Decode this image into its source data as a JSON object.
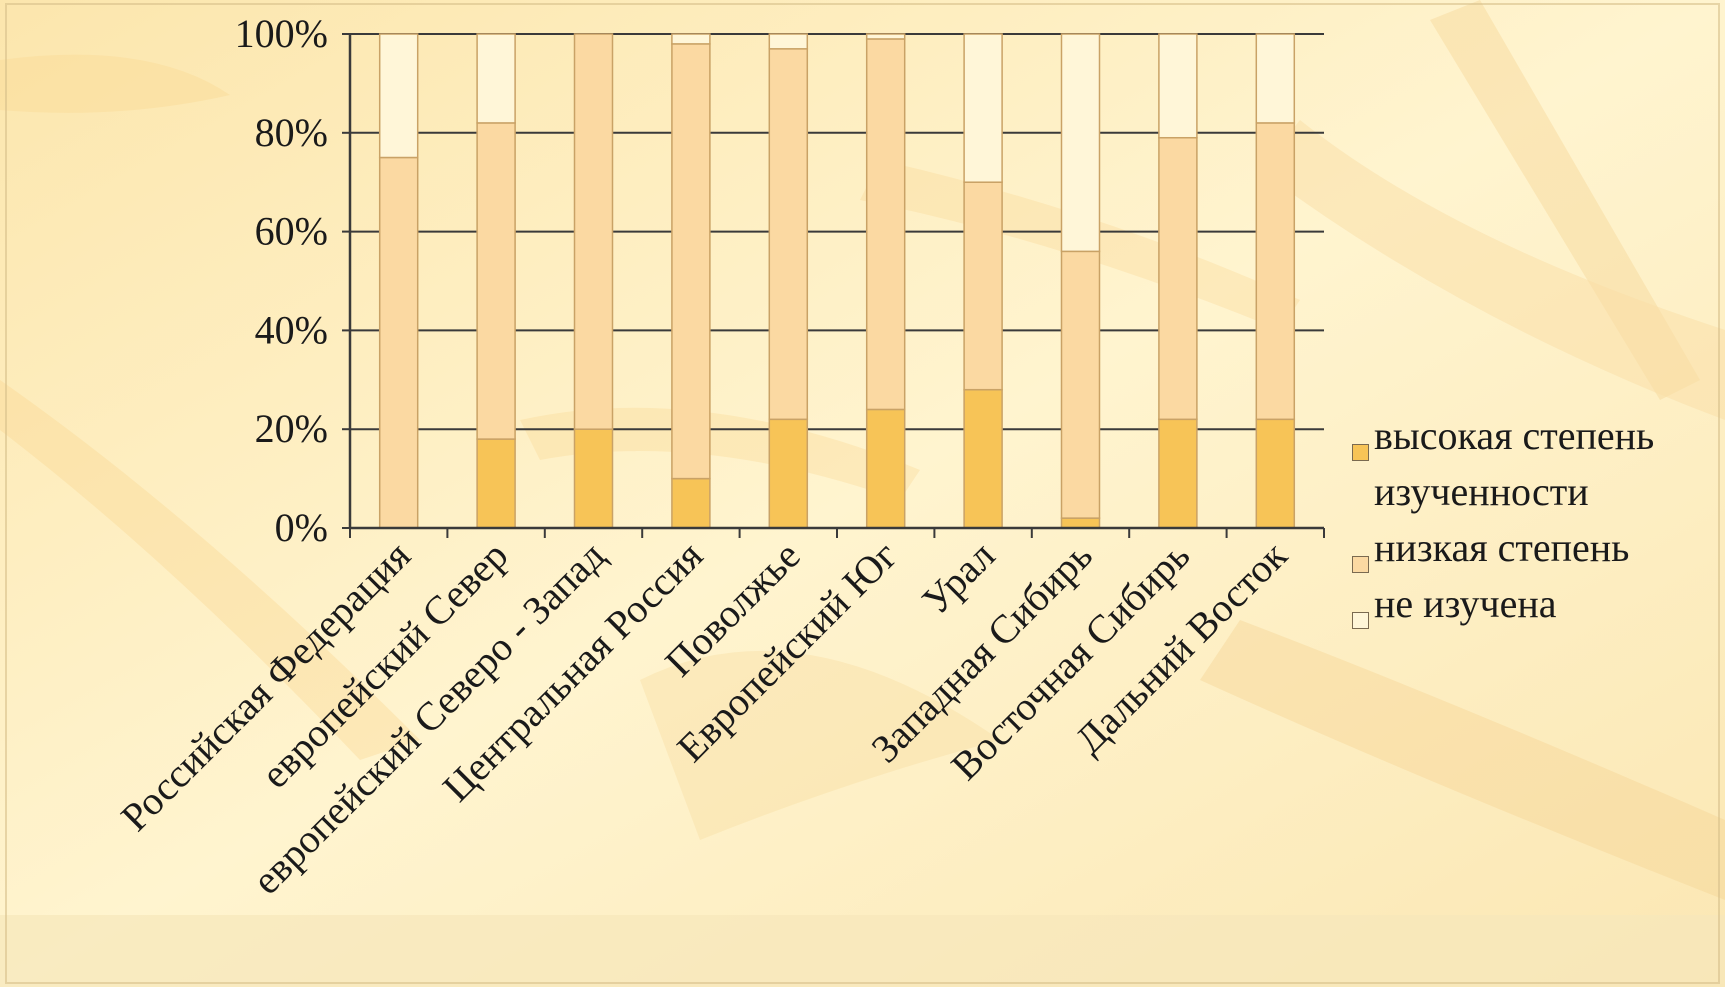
{
  "chart_data": {
    "type": "bar",
    "stacked": "percent",
    "categories": [
      "Российская Федерация",
      "европейский Север",
      "европейский Северо - Запад",
      "Центральная Россия",
      "Поволжье",
      "Европейский Юг",
      "Урал",
      "Западная Сибирь",
      "Восточная Сибирь",
      "Дальний Восток"
    ],
    "series": [
      {
        "name": "высокая степень изученности",
        "color": "#f7c457",
        "values": [
          0,
          18,
          20,
          10,
          22,
          24,
          28,
          2,
          22,
          22
        ]
      },
      {
        "name": "низкая степень",
        "color": "#fbd9a2",
        "values": [
          75,
          64,
          80,
          88,
          75,
          75,
          42,
          54,
          57,
          60
        ]
      },
      {
        "name": "не изучена",
        "color": "#fff6d8",
        "values": [
          25,
          18,
          0,
          2,
          3,
          1,
          30,
          44,
          21,
          18
        ]
      }
    ],
    "yticks": [
      "0%",
      "20%",
      "40%",
      "60%",
      "80%",
      "100%"
    ],
    "ylim": [
      0,
      100
    ],
    "grid": true,
    "legend": "right"
  }
}
